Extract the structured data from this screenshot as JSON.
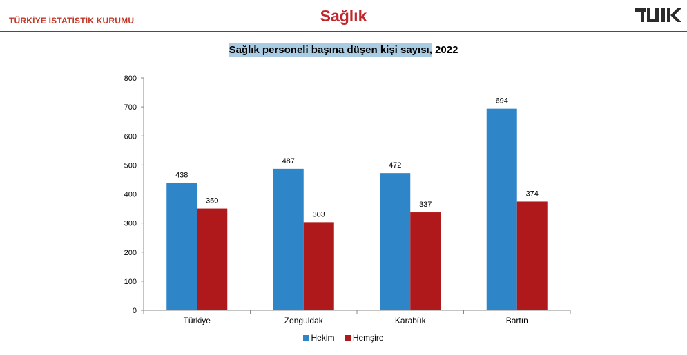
{
  "header": {
    "org_name": "TÜRKİYE İSTATİSTİK KURUMU",
    "section_title": "Sağlık",
    "logo_icon": "tuik-logo-icon"
  },
  "colors": {
    "accent": "#c0272d",
    "hekim": "#2e86c8",
    "hemsire": "#b0191b"
  },
  "chart_data": {
    "type": "bar",
    "title_main": "Sağlık personeli başına düşen kişi sayısı,",
    "title_year": " 2022",
    "categories": [
      "Türkiye",
      "Zonguldak",
      "Karabük",
      "Bartın"
    ],
    "series": [
      {
        "name": "Hekim",
        "values": [
          438,
          487,
          472,
          694
        ]
      },
      {
        "name": "Hemşire",
        "values": [
          350,
          303,
          337,
          374
        ]
      }
    ],
    "ylim": [
      0,
      800
    ],
    "yticks": [
      0,
      100,
      200,
      300,
      400,
      500,
      600,
      700,
      800
    ],
    "grid": false,
    "legend_position": "bottom"
  }
}
